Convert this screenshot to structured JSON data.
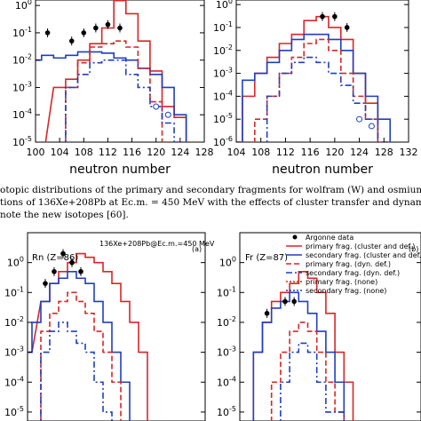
{
  "chart_data": [
    {
      "type": "line",
      "id": "top-left",
      "xlabel": "neutron number",
      "yscale": "log",
      "xlim": [
        100,
        128
      ],
      "ylim": [
        1e-05,
        1
      ],
      "xticks": [
        "100",
        "104",
        "108",
        "112",
        "116",
        "120",
        "124",
        "128"
      ],
      "yticks": [
        "10-5",
        "10-4",
        "10-3",
        "10-2",
        "10-1",
        "100"
      ],
      "series": [
        {
          "style": "primary-red",
          "color": "#d62728",
          "dash": "",
          "x": [
            100,
            104,
            106,
            108,
            110,
            112,
            114,
            116,
            118,
            120,
            122,
            124,
            126
          ],
          "y": [
            1e-06,
            0.001,
            0.002,
            0.01,
            0.04,
            0.15,
            1.5,
            0.5,
            0.05,
            0.004,
            0.0002,
            8e-05,
            1e-05
          ]
        },
        {
          "style": "secondary-blue",
          "color": "#1f3fbf",
          "dash": "",
          "x": [
            100,
            102,
            104,
            106,
            108,
            110,
            112,
            114,
            116,
            118,
            120,
            122,
            124
          ],
          "y": [
            0.01,
            0.015,
            0.012,
            0.015,
            0.02,
            0.02,
            0.018,
            0.012,
            0.01,
            0.005,
            0.003,
            0.001,
            0.0001
          ]
        },
        {
          "style": "dash-red",
          "color": "#d62728",
          "dash": "6,3",
          "x": [
            106,
            108,
            110,
            112,
            114,
            116,
            118,
            120,
            122
          ],
          "y": [
            0.001,
            0.008,
            0.03,
            0.04,
            0.05,
            0.03,
            0.005,
            0.0003,
            1e-05
          ]
        },
        {
          "style": "dashdot-blue",
          "color": "#1f3fbf",
          "dash": "7,3,2,3",
          "x": [
            106,
            108,
            110,
            112,
            114,
            116,
            118,
            120,
            122,
            124
          ],
          "y": [
            0.001,
            0.003,
            0.008,
            0.01,
            0.01,
            0.003,
            0.001,
            0.0002,
            5e-05,
            1e-05
          ]
        }
      ],
      "data_points": {
        "x": [
          102,
          106,
          108,
          110,
          112,
          114
        ],
        "y": [
          0.1,
          0.05,
          0.1,
          0.15,
          0.2,
          0.15
        ]
      },
      "new_isotopes": {
        "x": [
          120,
          122
        ],
        "y": [
          0.0002,
          0.0001
        ]
      }
    },
    {
      "type": "line",
      "id": "top-right",
      "xlabel": "neutron number",
      "yscale": "log",
      "xlim": [
        104,
        132
      ],
      "ylim": [
        1e-06,
        1
      ],
      "xticks": [
        "104",
        "108",
        "112",
        "116",
        "120",
        "124",
        "128",
        "132"
      ],
      "yticks": [
        "10-6",
        "10-5",
        "10-4",
        "10-3",
        "10-2",
        "10-1",
        "100"
      ],
      "series": [
        {
          "style": "primary-red",
          "color": "#d62728",
          "dash": "",
          "x": [
            104,
            106,
            108,
            110,
            112,
            114,
            116,
            118,
            120,
            122,
            124,
            126,
            128
          ],
          "y": [
            1e-06,
            0.0001,
            0.001,
            0.005,
            0.02,
            0.05,
            0.2,
            0.3,
            0.1,
            0.03,
            0.001,
            5e-05,
            1e-06
          ]
        },
        {
          "style": "secondary-blue",
          "color": "#1f3fbf",
          "dash": "",
          "x": [
            106,
            108,
            110,
            112,
            114,
            116,
            118,
            120,
            122,
            124,
            126,
            128
          ],
          "y": [
            0.0005,
            0.001,
            0.003,
            0.01,
            0.03,
            0.05,
            0.05,
            0.03,
            0.01,
            0.001,
            0.0001,
            1e-05
          ]
        },
        {
          "style": "dash-red",
          "color": "#d62728",
          "dash": "6,3",
          "x": [
            108,
            110,
            112,
            114,
            116,
            118,
            120,
            122,
            124,
            126
          ],
          "y": [
            1e-05,
            0.0001,
            0.001,
            0.005,
            0.02,
            0.03,
            0.01,
            0.001,
            0.0001,
            1e-05
          ]
        },
        {
          "style": "dashdot-blue",
          "color": "#1f3fbf",
          "dash": "7,3,2,3",
          "x": [
            110,
            112,
            114,
            116,
            118,
            120,
            122,
            124,
            126,
            128
          ],
          "y": [
            0.0001,
            0.001,
            0.003,
            0.005,
            0.003,
            0.001,
            0.0003,
            5e-05,
            1e-05,
            1e-06
          ]
        }
      ],
      "data_points": {
        "x": [
          118,
          120,
          122
        ],
        "y": [
          0.3,
          0.3,
          0.1
        ]
      },
      "new_isotopes": {
        "x": [
          124,
          126
        ],
        "y": [
          1e-05,
          5e-06
        ]
      }
    },
    {
      "type": "line",
      "id": "bottom-left",
      "yscale": "log",
      "xlim": [
        100,
        140
      ],
      "ylim": [
        1e-05,
        10
      ],
      "yticks": [
        "100",
        "10-1",
        "10-2",
        "10-3",
        "10-4",
        "10-5"
      ],
      "labels": {
        "element": "Rn (Z=86)",
        "reaction": "136Xe+208Pb@Ec.m.=450 MeV",
        "panel": "(a)"
      },
      "series": [
        {
          "style": "primary-red",
          "color": "#d62728",
          "dash": "",
          "x": [
            100,
            104,
            106,
            108,
            110,
            112,
            114,
            116,
            118,
            120,
            122,
            124,
            126
          ],
          "y": [
            0.001,
            0.05,
            0.2,
            0.5,
            1,
            2,
            1.5,
            1,
            0.5,
            0.2,
            0.05,
            0.01,
            0.001
          ]
        },
        {
          "style": "secondary-blue",
          "color": "#1f3fbf",
          "dash": "",
          "x": [
            100,
            102,
            104,
            106,
            108,
            110,
            112,
            114,
            116,
            118,
            120,
            122
          ],
          "y": [
            0.001,
            0.01,
            0.05,
            0.2,
            0.3,
            0.5,
            0.3,
            0.2,
            0.05,
            0.01,
            0.001,
            0.0001
          ]
        },
        {
          "style": "dash-red",
          "color": "#d62728",
          "dash": "6,3",
          "x": [
            104,
            106,
            108,
            110,
            112,
            114,
            116,
            118,
            120
          ],
          "y": [
            0.005,
            0.02,
            0.05,
            0.1,
            0.05,
            0.02,
            0.005,
            0.001,
            0.0001
          ]
        },
        {
          "style": "dashdot-blue",
          "color": "#1f3fbf",
          "dash": "7,3,2,3",
          "x": [
            104,
            106,
            108,
            110,
            112,
            114,
            116,
            118
          ],
          "y": [
            0.001,
            0.005,
            0.01,
            0.005,
            0.002,
            0.001,
            0.0001,
            1e-05
          ]
        }
      ],
      "data_points": {
        "x": [
          104,
          106,
          108,
          110,
          112
        ],
        "y": [
          0.2,
          0.5,
          2,
          1,
          0.5
        ]
      }
    },
    {
      "type": "line",
      "id": "bottom-right",
      "yscale": "log",
      "xlim": [
        100,
        140
      ],
      "ylim": [
        1e-05,
        10
      ],
      "yticks": [
        "100",
        "10-1",
        "10-2",
        "10-3",
        "10-4",
        "10-5"
      ],
      "labels": {
        "element": "Fr (Z=87)",
        "panel": "(b)"
      },
      "legend": [
        "Argonne data",
        "primary frag.   (cluster and def.)",
        "secondary frag.  (cluster and def.)",
        "primary frag.   (dyn. def.)",
        "secondary frag.  (dyn. def.)",
        "primary frag.   (none)",
        "secondary frag.  (none)"
      ],
      "series": [
        {
          "style": "primary-red",
          "color": "#d62728",
          "dash": "",
          "x": [
            104,
            106,
            108,
            110,
            112,
            114,
            116,
            118,
            120,
            122,
            124
          ],
          "y": [
            0.001,
            0.01,
            0.05,
            0.1,
            0.2,
            0.5,
            0.3,
            0.1,
            0.02,
            0.001,
            0.0001
          ]
        },
        {
          "style": "secondary-blue",
          "color": "#1f3fbf",
          "dash": "",
          "x": [
            104,
            106,
            108,
            110,
            112,
            114,
            116,
            118,
            120,
            122
          ],
          "y": [
            0.001,
            0.01,
            0.03,
            0.05,
            0.1,
            0.05,
            0.02,
            0.005,
            0.001,
            0.0001
          ]
        },
        {
          "style": "dash-red",
          "color": "#d62728",
          "dash": "6,3",
          "x": [
            108,
            110,
            112,
            114,
            116,
            118,
            120,
            122
          ],
          "y": [
            0.0001,
            0.001,
            0.005,
            0.01,
            0.005,
            0.001,
            0.0001,
            1e-05
          ]
        },
        {
          "style": "dashdot-blue",
          "color": "#1f3fbf",
          "dash": "7,3,2,3",
          "x": [
            110,
            112,
            114,
            116,
            118,
            120,
            122
          ],
          "y": [
            0.0001,
            0.001,
            0.002,
            0.001,
            0.0001,
            1e-05,
            1e-05
          ]
        }
      ],
      "data_points": {
        "x": [
          106,
          110,
          112
        ],
        "y": [
          0.02,
          0.05,
          0.05
        ]
      }
    }
  ],
  "caption": {
    "line1": "otopic distributions of the primary and secondary fragments for wolfram (W) and osmium (Os) production",
    "line2": "tions of 136Xe+208Pb at Ec.m. = 450 MeV with the effects of cluster transfer and dynamical deformation. Th",
    "line3": "note the new isotopes [60]."
  }
}
